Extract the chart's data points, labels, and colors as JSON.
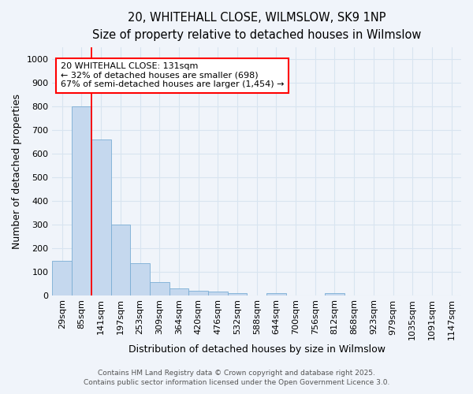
{
  "title_line1": "20, WHITEHALL CLOSE, WILMSLOW, SK9 1NP",
  "title_line2": "Size of property relative to detached houses in Wilmslow",
  "xlabel": "Distribution of detached houses by size in Wilmslow",
  "ylabel": "Number of detached properties",
  "bar_labels": [
    "29sqm",
    "85sqm",
    "141sqm",
    "197sqm",
    "253sqm",
    "309sqm",
    "364sqm",
    "420sqm",
    "476sqm",
    "532sqm",
    "588sqm",
    "644sqm",
    "700sqm",
    "756sqm",
    "812sqm",
    "868sqm",
    "923sqm",
    "979sqm",
    "1035sqm",
    "1091sqm",
    "1147sqm"
  ],
  "bar_values": [
    145,
    800,
    660,
    300,
    135,
    55,
    30,
    18,
    14,
    8,
    0,
    10,
    0,
    0,
    8,
    0,
    0,
    0,
    0,
    0,
    0
  ],
  "bar_color": "#c5d8ee",
  "bar_edge_color": "#7aadd4",
  "annotation_line1": "20 WHITEHALL CLOSE: 131sqm",
  "annotation_line2": "← 32% of detached houses are smaller (698)",
  "annotation_line3": "67% of semi-detached houses are larger (1,454) →",
  "red_line_bar_index": 2,
  "ylim": [
    0,
    1050
  ],
  "yticks": [
    0,
    100,
    200,
    300,
    400,
    500,
    600,
    700,
    800,
    900,
    1000
  ],
  "footer_line1": "Contains HM Land Registry data © Crown copyright and database right 2025.",
  "footer_line2": "Contains public sector information licensed under the Open Government Licence 3.0.",
  "bg_color": "#f0f4fa",
  "grid_color": "#d8e4f0",
  "title_fontsize": 10.5,
  "subtitle_fontsize": 9.5,
  "label_fontsize": 9,
  "tick_fontsize": 8,
  "annotation_fontsize": 8,
  "footer_fontsize": 6.5
}
